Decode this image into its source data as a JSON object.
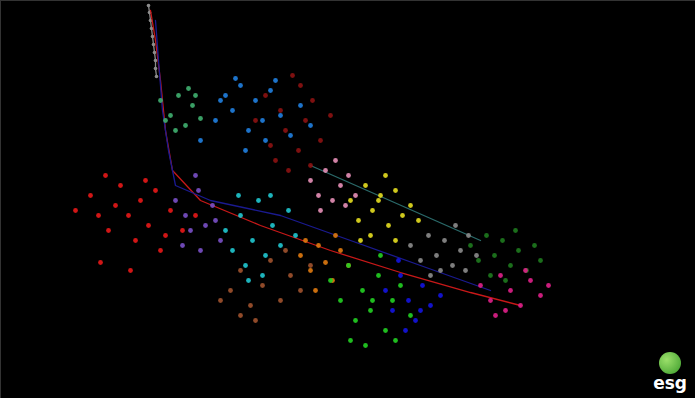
{
  "chart_data": {
    "type": "scatter",
    "marker": "circle",
    "tick_labels": false,
    "grid": false,
    "xlim": [
      0,
      695
    ],
    "ylim": [
      398,
      0
    ],
    "annotations": [
      "esg"
    ],
    "series": [
      {
        "type": "line",
        "marker": "circle",
        "color": "#8c8c8c",
        "x": [
          148,
          149,
          150,
          151,
          152,
          153,
          154,
          155,
          155,
          156
        ],
        "y": [
          5,
          12,
          20,
          28,
          36,
          44,
          52,
          60,
          68,
          76
        ]
      },
      {
        "type": "line",
        "color": "#c81818",
        "x": [
          150,
          155,
          160,
          165,
          172,
          200,
          260,
          330,
          400,
          470,
          520
        ],
        "y": [
          10,
          40,
          80,
          130,
          170,
          200,
          225,
          250,
          272,
          292,
          305
        ]
      },
      {
        "type": "line",
        "color": "#1a1a90",
        "x": [
          155,
          158,
          162,
          168,
          175,
          210,
          280,
          350,
          420,
          490
        ],
        "y": [
          20,
          60,
          110,
          150,
          185,
          200,
          215,
          240,
          265,
          290
        ]
      },
      {
        "type": "line",
        "color": "#2a6a6a",
        "x": [
          310,
          480
        ],
        "y": [
          165,
          240
        ]
      },
      {
        "color": "#e81818",
        "x": [
          75,
          90,
          100,
          108,
          115,
          120,
          128,
          135,
          140,
          148,
          155,
          160,
          170,
          182,
          195,
          105,
          130,
          98,
          145,
          165
        ],
        "y": [
          210,
          195,
          262,
          230,
          205,
          185,
          215,
          240,
          200,
          225,
          190,
          250,
          210,
          230,
          215,
          175,
          270,
          215,
          180,
          235
        ]
      },
      {
        "color": "#2080e0",
        "x": [
          200,
          215,
          225,
          232,
          240,
          248,
          255,
          262,
          270,
          280,
          290,
          300,
          310,
          245,
          235,
          265,
          275,
          220
        ],
        "y": [
          140,
          120,
          95,
          110,
          85,
          130,
          100,
          120,
          90,
          115,
          135,
          105,
          125,
          150,
          78,
          140,
          80,
          100
        ]
      },
      {
        "color": "#8c1212",
        "x": [
          255,
          265,
          270,
          280,
          285,
          292,
          298,
          305,
          312,
          320,
          330,
          288,
          275,
          300,
          310
        ],
        "y": [
          120,
          95,
          145,
          110,
          130,
          75,
          150,
          120,
          100,
          140,
          115,
          170,
          160,
          85,
          165
        ]
      },
      {
        "color": "#40b070",
        "x": [
          160,
          170,
          178,
          185,
          192,
          200,
          175,
          188,
          165,
          195
        ],
        "y": [
          100,
          115,
          95,
          125,
          105,
          118,
          130,
          88,
          120,
          95
        ]
      },
      {
        "color": "#7a50c8",
        "x": [
          175,
          185,
          190,
          198,
          205,
          212,
          220,
          182,
          200,
          215,
          195
        ],
        "y": [
          200,
          215,
          230,
          190,
          225,
          205,
          240,
          245,
          250,
          220,
          175
        ]
      },
      {
        "color": "#20c8d0",
        "x": [
          225,
          232,
          240,
          245,
          252,
          258,
          265,
          272,
          280,
          288,
          295,
          248,
          262,
          238,
          270
        ],
        "y": [
          230,
          250,
          215,
          265,
          240,
          200,
          255,
          225,
          245,
          210,
          235,
          280,
          275,
          195,
          195
        ]
      },
      {
        "color": "#a0522d",
        "x": [
          230,
          240,
          250,
          262,
          270,
          280,
          290,
          300,
          310,
          255,
          285,
          240,
          220
        ],
        "y": [
          290,
          270,
          305,
          285,
          260,
          300,
          275,
          290,
          265,
          320,
          250,
          315,
          300
        ]
      },
      {
        "color": "#e07a10",
        "x": [
          300,
          310,
          318,
          325,
          332,
          340,
          348,
          315,
          335,
          305
        ],
        "y": [
          255,
          270,
          245,
          262,
          280,
          250,
          265,
          290,
          235,
          240
        ]
      },
      {
        "color": "#e890b8",
        "x": [
          310,
          318,
          325,
          332,
          340,
          348,
          355,
          320,
          335,
          345
        ],
        "y": [
          180,
          195,
          170,
          200,
          185,
          175,
          195,
          210,
          160,
          205
        ]
      },
      {
        "color": "#e6de20",
        "x": [
          350,
          358,
          365,
          372,
          380,
          388,
          395,
          402,
          410,
          418,
          370,
          385,
          395,
          360,
          378
        ],
        "y": [
          200,
          220,
          185,
          210,
          195,
          225,
          190,
          215,
          205,
          220,
          235,
          175,
          240,
          240,
          200
        ]
      },
      {
        "color": "#22d022",
        "x": [
          330,
          340,
          348,
          355,
          362,
          370,
          378,
          385,
          392,
          400,
          410,
          350,
          365,
          380,
          395,
          372
        ],
        "y": [
          280,
          300,
          265,
          320,
          290,
          310,
          275,
          330,
          300,
          285,
          315,
          340,
          345,
          255,
          340,
          300
        ]
      },
      {
        "color": "#1414e0",
        "x": [
          385,
          392,
          400,
          408,
          415,
          422,
          430,
          440,
          405,
          420,
          398
        ],
        "y": [
          290,
          310,
          275,
          300,
          320,
          285,
          305,
          295,
          330,
          310,
          260
        ]
      },
      {
        "color": "#8c8c8c",
        "x": [
          410,
          420,
          428,
          436,
          444,
          452,
          460,
          468,
          476,
          440,
          455,
          430,
          465
        ],
        "y": [
          245,
          260,
          235,
          255,
          240,
          265,
          250,
          235,
          255,
          270,
          225,
          275,
          270
        ]
      },
      {
        "color": "#1e7a1e",
        "x": [
          470,
          478,
          486,
          494,
          502,
          510,
          518,
          526,
          534,
          540,
          490,
          515,
          505
        ],
        "y": [
          245,
          260,
          235,
          255,
          240,
          265,
          250,
          270,
          245,
          260,
          275,
          230,
          280
        ]
      },
      {
        "color": "#e0208a",
        "x": [
          480,
          490,
          500,
          510,
          520,
          530,
          540,
          548,
          505,
          525,
          495
        ],
        "y": [
          285,
          300,
          275,
          290,
          305,
          280,
          295,
          285,
          310,
          270,
          315
        ]
      }
    ]
  }
}
